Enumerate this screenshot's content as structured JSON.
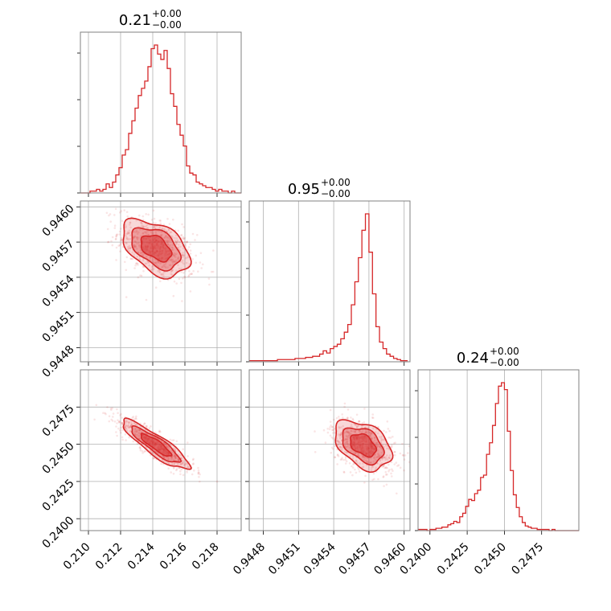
{
  "chart_data": {
    "type": "corner",
    "color": "#d62728",
    "parameters": [
      {
        "title_value": "0.21",
        "title_plus": "+0.00",
        "title_minus": "−0.00",
        "range": [
          0.2095,
          0.2195
        ],
        "ticks": [
          0.21,
          0.212,
          0.214,
          0.216,
          0.218
        ],
        "tick_labels": [
          "0.210",
          "0.212",
          "0.214",
          "0.216",
          "0.218"
        ],
        "mean": 0.2142,
        "sd": 0.00095,
        "hist": {
          "edges": [
            0.2095,
            0.2097,
            0.2099,
            0.2101,
            0.2103,
            0.2105,
            0.2107,
            0.2109,
            0.2111,
            0.2113,
            0.2115,
            0.2117,
            0.2119,
            0.2121,
            0.2123,
            0.2125,
            0.2127,
            0.2129,
            0.2131,
            0.2133,
            0.2135,
            0.2137,
            0.2139,
            0.2141,
            0.2143,
            0.2145,
            0.2147,
            0.2149,
            0.2151,
            0.2153,
            0.2155,
            0.2157,
            0.2159,
            0.2161,
            0.2163,
            0.2165,
            0.2167,
            0.2169,
            0.2171,
            0.2173,
            0.2175,
            0.2177,
            0.2179,
            0.2181,
            0.2183,
            0.2185,
            0.2187,
            0.2189,
            0.2191,
            0.2193,
            0.2195
          ],
          "counts": [
            0,
            0,
            0,
            1,
            1,
            2,
            1,
            2,
            5,
            3,
            6,
            10,
            14,
            21,
            24,
            33,
            40,
            47,
            54,
            58,
            62,
            70,
            80,
            82,
            77,
            74,
            79,
            69,
            55,
            48,
            38,
            32,
            26,
            15,
            11,
            10,
            6,
            5,
            4,
            3,
            3,
            2,
            1,
            2,
            1,
            1,
            0,
            1,
            0,
            0
          ]
        }
      },
      {
        "title_value": "0.95",
        "title_plus": "+0.00",
        "title_minus": "−0.00",
        "range": [
          0.94468,
          0.94605
        ],
        "ticks": [
          0.9448,
          0.9451,
          0.9454,
          0.9457,
          0.946
        ],
        "tick_labels": [
          "0.9448",
          "0.9451",
          "0.9454",
          "0.9457",
          "0.9460"
        ],
        "mean": 0.94565,
        "sd": 0.00011,
        "hist": {
          "edges": [
            0.94468,
            0.94471,
            0.94474,
            0.94477,
            0.9448,
            0.94483,
            0.94486,
            0.94489,
            0.94492,
            0.94495,
            0.94498,
            0.94501,
            0.94504,
            0.94507,
            0.9451,
            0.94513,
            0.94516,
            0.94519,
            0.94522,
            0.94525,
            0.94528,
            0.94531,
            0.94534,
            0.94537,
            0.9454,
            0.94543,
            0.94546,
            0.94549,
            0.94552,
            0.94555,
            0.94558,
            0.94561,
            0.94564,
            0.94567,
            0.9457,
            0.94573,
            0.94576,
            0.94579,
            0.94582,
            0.94585,
            0.94588,
            0.94591,
            0.94594,
            0.94597,
            0.946,
            0.94603
          ],
          "counts": [
            1,
            1,
            1,
            1,
            1,
            1,
            1,
            1,
            2,
            2,
            2,
            2,
            2,
            3,
            3,
            3,
            4,
            4,
            5,
            5,
            7,
            10,
            8,
            12,
            14,
            16,
            21,
            27,
            34,
            52,
            73,
            95,
            120,
            135,
            100,
            62,
            32,
            18,
            12,
            7,
            5,
            3,
            2,
            1,
            1
          ]
        }
      },
      {
        "title_value": "0.24",
        "title_plus": "+0.00",
        "title_minus": "−0.00",
        "range": [
          0.2392,
          0.25
        ],
        "ticks": [
          0.24,
          0.2425,
          0.245,
          0.2475
        ],
        "tick_labels": [
          "0.2400",
          "0.2425",
          "0.2450",
          "0.2475"
        ],
        "mean": 0.24495,
        "sd": 0.00075,
        "hist": {
          "edges": [
            0.2392,
            0.2394,
            0.2396,
            0.2398,
            0.24,
            0.2402,
            0.2404,
            0.2406,
            0.2408,
            0.241,
            0.2412,
            0.2414,
            0.2416,
            0.2418,
            0.242,
            0.2422,
            0.2424,
            0.2426,
            0.2428,
            0.243,
            0.2432,
            0.2434,
            0.2436,
            0.2438,
            0.244,
            0.2442,
            0.2444,
            0.2446,
            0.2448,
            0.245,
            0.2452,
            0.2454,
            0.2456,
            0.2458,
            0.246,
            0.2462,
            0.2464,
            0.2466,
            0.2468,
            0.247,
            0.2472,
            0.2474,
            0.2476,
            0.2478,
            0.248,
            0.2482,
            0.2484,
            0.2486,
            0.2488,
            0.249,
            0.2492,
            0.2494,
            0.2496,
            0.2498,
            0.25
          ],
          "counts": [
            1,
            1,
            1,
            0,
            1,
            1,
            2,
            2,
            3,
            3,
            5,
            6,
            8,
            7,
            12,
            15,
            21,
            27,
            26,
            32,
            35,
            46,
            48,
            66,
            76,
            91,
            110,
            125,
            128,
            122,
            86,
            52,
            31,
            20,
            12,
            7,
            4,
            3,
            2,
            2,
            1,
            1,
            1,
            1,
            0,
            1,
            0,
            0,
            0,
            0,
            0,
            0,
            0,
            0
          ]
        }
      }
    ],
    "pairs": [
      {
        "x": 0,
        "y": 1,
        "rho": -0.45
      },
      {
        "x": 0,
        "y": 2,
        "rho": -0.88
      },
      {
        "x": 1,
        "y": 2,
        "rho": -0.4
      }
    ],
    "contour_sigmas": [
      1.0,
      1.6,
      2.2
    ],
    "scatter_points_per_panel": 700
  }
}
